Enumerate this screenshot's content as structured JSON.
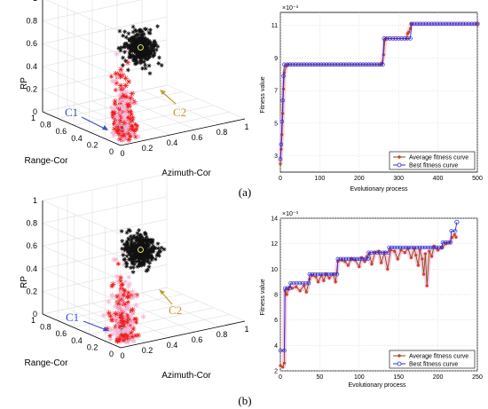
{
  "captions": [
    "(a)",
    "(b)"
  ],
  "colors": {
    "avg": "#8b4513",
    "avg_marker": "#d2421e",
    "best": "#2b2bd1",
    "red_points": "#ee1c1c",
    "pink_points": "#f3b6d6",
    "black_points": "#111111",
    "c1_arrow": "#3a4fc7",
    "c2_arrow": "#c79a2b",
    "grid": "#d8d8d8"
  },
  "scatter3d": [
    {
      "xlabel": "Azimuth-Cor",
      "ylabel": "Range-Cor",
      "zlabel": "RP",
      "x_ticks": [
        "0",
        "0.2",
        "0.4",
        "0.6",
        "0.8",
        "1"
      ],
      "y_ticks": [
        "0",
        "0.2",
        "0.4",
        "0.6",
        "0.8",
        "1"
      ],
      "z_ticks": [
        "0",
        "0.2",
        "0.4",
        "0.6",
        "0.8",
        "1"
      ],
      "cluster_labels": [
        "C1",
        "C2"
      ]
    },
    {
      "xlabel": "Azimuth-Cor",
      "ylabel": "Range-Cor",
      "zlabel": "RP",
      "x_ticks": [
        "0",
        "0.2",
        "0.4",
        "0.6",
        "0.8",
        "1"
      ],
      "y_ticks": [
        "0",
        "0.2",
        "0.4",
        "0.6",
        "0.8",
        "1"
      ],
      "z_ticks": [
        "0",
        "0.2",
        "0.4",
        "0.6",
        "0.8",
        "1"
      ],
      "cluster_labels": [
        "C1",
        "C2"
      ]
    }
  ],
  "chart_data": [
    {
      "type": "line",
      "xlabel": "Evolutionary process",
      "ylabel": "Fitness value",
      "exponent_label": "×10⁻³",
      "xlim": [
        0,
        500
      ],
      "ylim": [
        2,
        11.8
      ],
      "x_ticks": [
        "0",
        "100",
        "200",
        "300",
        "400",
        "500"
      ],
      "y_ticks": [
        "3",
        "5",
        "7",
        "9",
        "11"
      ],
      "legend": "bottom-right",
      "series": [
        {
          "name": "Average fitness curve",
          "points": [
            [
              0,
              2.5
            ],
            [
              2,
              3.4
            ],
            [
              4,
              4.3
            ],
            [
              6,
              5.6
            ],
            [
              8,
              7.1
            ],
            [
              10,
              8.1
            ],
            [
              15,
              8.5
            ],
            [
              20,
              8.6
            ],
            [
              255,
              8.6
            ],
            [
              258,
              8.7
            ],
            [
              262,
              9.2
            ],
            [
              265,
              10.1
            ],
            [
              268,
              10.2
            ],
            [
              320,
              10.2
            ],
            [
              323,
              10.5
            ],
            [
              326,
              10.6
            ],
            [
              330,
              10.8
            ],
            [
              332,
              11.1
            ],
            [
              500,
              11.1
            ]
          ]
        },
        {
          "name": "Best fitness curve",
          "points": [
            [
              0,
              2.8
            ],
            [
              2,
              3.7
            ],
            [
              4,
              5.1
            ],
            [
              6,
              6.4
            ],
            [
              8,
              7.9
            ],
            [
              10,
              8.6
            ],
            [
              260,
              8.6
            ],
            [
              263,
              10.2
            ],
            [
              330,
              10.2
            ],
            [
              333,
              11.1
            ],
            [
              500,
              11.1
            ]
          ]
        }
      ]
    },
    {
      "type": "line",
      "xlabel": "Evolutionary process",
      "ylabel": "Fitness value",
      "exponent_label": "×10⁻³",
      "xlim": [
        0,
        250
      ],
      "ylim": [
        2,
        14
      ],
      "x_ticks": [
        "0",
        "50",
        "100",
        "150",
        "200",
        "250"
      ],
      "y_ticks": [
        "2",
        "4",
        "6",
        "8",
        "10",
        "12",
        "14"
      ],
      "legend": "bottom-right",
      "series": [
        {
          "name": "Average fitness curve",
          "points": [
            [
              0,
              2.4
            ],
            [
              3,
              2.3
            ],
            [
              5,
              2.6
            ],
            [
              6,
              8.3
            ],
            [
              8,
              8.0
            ],
            [
              10,
              8.4
            ],
            [
              12,
              8.6
            ],
            [
              15,
              8.5
            ],
            [
              20,
              8.6
            ],
            [
              25,
              8.3
            ],
            [
              30,
              8.7
            ],
            [
              33,
              8.2
            ],
            [
              37,
              9.2
            ],
            [
              40,
              9.5
            ],
            [
              45,
              9.4
            ],
            [
              48,
              9.0
            ],
            [
              52,
              9.5
            ],
            [
              55,
              9.1
            ],
            [
              58,
              9.6
            ],
            [
              62,
              9.3
            ],
            [
              67,
              9.6
            ],
            [
              70,
              9.0
            ],
            [
              73,
              10.6
            ],
            [
              78,
              10.7
            ],
            [
              82,
              10.6
            ],
            [
              86,
              10.3
            ],
            [
              90,
              10.8
            ],
            [
              95,
              10.7
            ],
            [
              100,
              10.2
            ],
            [
              103,
              10.9
            ],
            [
              107,
              10.6
            ],
            [
              110,
              11.0
            ],
            [
              113,
              11.2
            ],
            [
              116,
              10.4
            ],
            [
              120,
              11.3
            ],
            [
              125,
              11.4
            ],
            [
              128,
              10.5
            ],
            [
              132,
              11.3
            ],
            [
              136,
              10.0
            ],
            [
              140,
              11.5
            ],
            [
              145,
              11.4
            ],
            [
              149,
              10.8
            ],
            [
              153,
              11.5
            ],
            [
              158,
              11.3
            ],
            [
              162,
              11.6
            ],
            [
              166,
              10.9
            ],
            [
              170,
              11.6
            ],
            [
              172,
              11.1
            ],
            [
              175,
              10.3
            ],
            [
              177,
              11.5
            ],
            [
              180,
              10.8
            ],
            [
              182,
              9.6
            ],
            [
              184,
              11.2
            ],
            [
              186,
              8.7
            ],
            [
              189,
              11.4
            ],
            [
              192,
              11.0
            ],
            [
              195,
              11.8
            ],
            [
              200,
              11.5
            ],
            [
              205,
              11.7
            ],
            [
              210,
              12.0
            ],
            [
              215,
              12.1
            ],
            [
              218,
              12.5
            ],
            [
              221,
              12.7
            ],
            [
              223,
              12.5
            ]
          ]
        },
        {
          "name": "Best fitness curve",
          "points": [
            [
              0,
              3.6
            ],
            [
              5,
              3.6
            ],
            [
              6,
              8.5
            ],
            [
              12,
              8.5
            ],
            [
              13,
              8.9
            ],
            [
              36,
              8.9
            ],
            [
              37,
              9.6
            ],
            [
              72,
              9.6
            ],
            [
              73,
              10.8
            ],
            [
              111,
              10.8
            ],
            [
              112,
              11.3
            ],
            [
              137,
              11.3
            ],
            [
              138,
              11.7
            ],
            [
              205,
              11.7
            ],
            [
              206,
              12.1
            ],
            [
              216,
              12.1
            ],
            [
              217,
              13.0
            ],
            [
              222,
              13.0
            ],
            [
              224,
              13.7
            ]
          ]
        }
      ]
    }
  ]
}
